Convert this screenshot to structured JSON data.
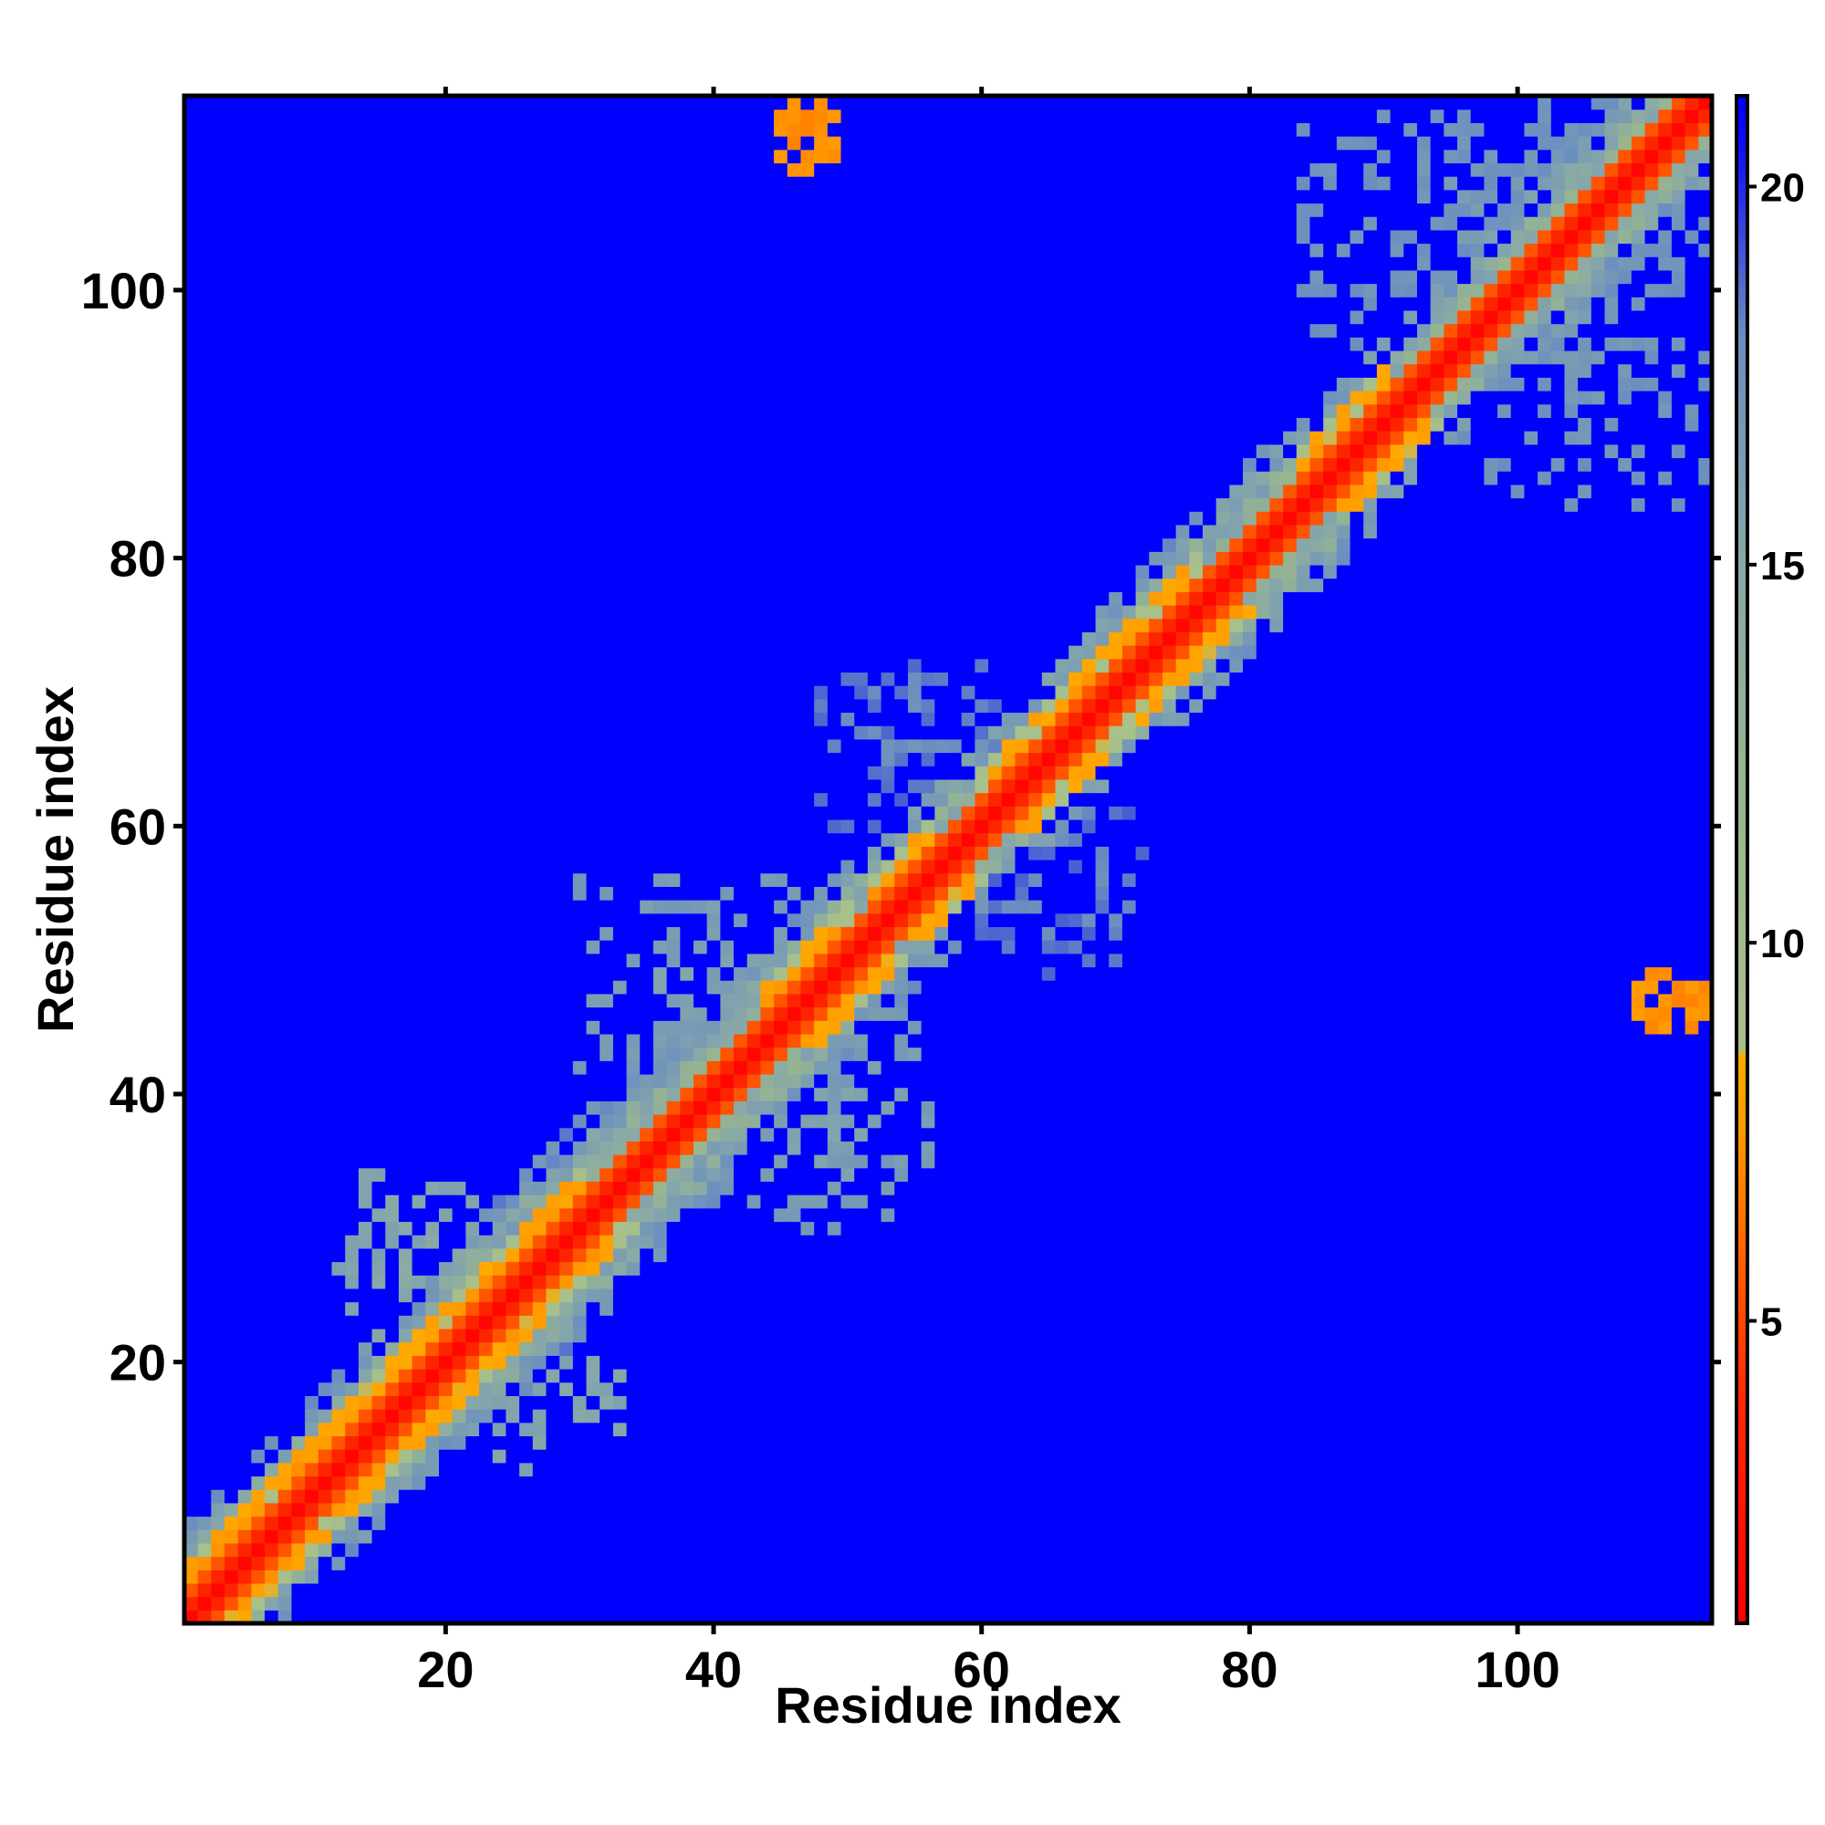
{
  "chart_data": {
    "type": "heatmap",
    "title": "",
    "xlabel": "Residue index",
    "ylabel": "Residue index",
    "n_residues": 114,
    "xlim": [
      0.5,
      114.5
    ],
    "ylim": [
      0.5,
      114.5
    ],
    "x_ticks": [
      20,
      40,
      60,
      80,
      100
    ],
    "y_ticks": [
      20,
      40,
      60,
      80,
      100
    ],
    "value_range": [
      1,
      21.2
    ],
    "colorbar": {
      "placement": "right",
      "ticks": [
        5,
        10,
        15,
        20
      ],
      "stops": [
        {
          "v": 1,
          "color": "#ff0000"
        },
        {
          "v": 4,
          "color": "#ff2a00"
        },
        {
          "v": 6,
          "color": "#ff6600"
        },
        {
          "v": 7.5,
          "color": "#ff9900"
        },
        {
          "v": 8.5,
          "color": "#ffaa00"
        },
        {
          "v": 8.6,
          "color": "#a8c08a"
        },
        {
          "v": 12,
          "color": "#98b68e"
        },
        {
          "v": 15,
          "color": "#88a8a8"
        },
        {
          "v": 18,
          "color": "#6a8ec0"
        },
        {
          "v": 20.5,
          "color": "#1010f0"
        },
        {
          "v": 21.2,
          "color": "#0000ff"
        }
      ]
    },
    "background_value": 21.2,
    "diagonal_band": [
      {
        "d": 0,
        "v": 1.5
      },
      {
        "d": 1,
        "v": 3.5
      },
      {
        "d": 2,
        "v": 5.5
      }
    ],
    "helix_segments": [
      [
        1,
        14
      ],
      [
        14,
        30
      ],
      [
        44,
        50
      ],
      [
        52,
        56
      ],
      [
        60,
        76
      ],
      [
        84,
        90
      ]
    ],
    "near_band": [
      [
        1,
        16,
        5
      ],
      [
        10,
        34,
        6
      ],
      [
        34,
        52,
        5
      ],
      [
        52,
        66,
        4
      ],
      [
        60,
        82,
        5
      ],
      [
        80,
        114,
        4
      ]
    ],
    "off_diagonal_contacts": [
      {
        "x": [
          45,
          49
        ],
        "y": [
          109,
          114
        ],
        "value": 6.5
      },
      {
        "x": [
          109,
          114
        ],
        "y": [
          45,
          49
        ],
        "value": 6.5
      },
      {
        "x": [
          84,
          112
        ],
        "y": [
          96,
          114
        ],
        "value": 14
      },
      {
        "x": [
          96,
          114
        ],
        "y": [
          84,
          112
        ],
        "value": 14
      },
      {
        "x": [
          48,
          62
        ],
        "y": [
          60,
          72
        ],
        "value": 15
      },
      {
        "x": [
          60,
          72
        ],
        "y": [
          48,
          62
        ],
        "value": 15
      },
      {
        "x": [
          30,
          48
        ],
        "y": [
          42,
          56
        ],
        "value": 13
      },
      {
        "x": [
          42,
          56
        ],
        "y": [
          30,
          48
        ],
        "value": 13
      },
      {
        "x": [
          12,
          22
        ],
        "y": [
          22,
          34
        ],
        "value": 12
      },
      {
        "x": [
          22,
          34
        ],
        "y": [
          12,
          22
        ],
        "value": 12
      }
    ]
  }
}
